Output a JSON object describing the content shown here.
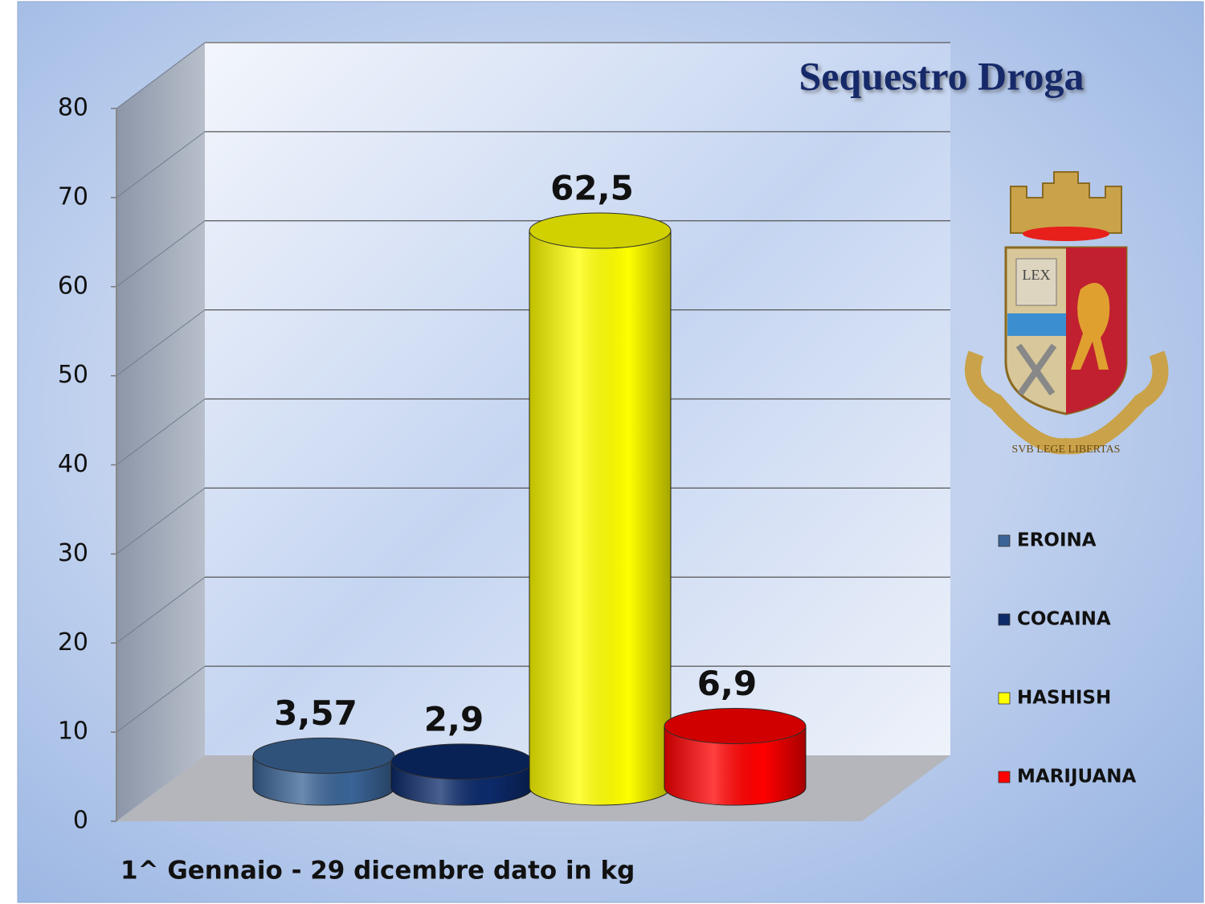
{
  "chart_data": {
    "type": "bar",
    "title": "Sequestro Droga",
    "footnote": "1^ Gennaio  - 29 dicembre dato in kg",
    "series": [
      {
        "name": "EROINA",
        "color": "#3a6496",
        "values": [
          3.57
        ],
        "value_labels": [
          "3,57"
        ]
      },
      {
        "name": "COCAINA",
        "color": "#0c2a6a",
        "values": [
          2.9
        ],
        "value_labels": [
          "2,9"
        ]
      },
      {
        "name": "HASHISH",
        "color": "#ffff00",
        "values": [
          62.5
        ],
        "value_labels": [
          "62,5"
        ]
      },
      {
        "name": "MARIJUANA",
        "color": "#ff0000",
        "values": [
          6.9
        ],
        "value_labels": [
          "6,9"
        ]
      }
    ],
    "ylim": [
      0,
      80
    ],
    "yticks": [
      0,
      10,
      20,
      30,
      40,
      50,
      60,
      70,
      80
    ],
    "grid": true
  },
  "emblem": {
    "book_text": "LEX",
    "motto": "SVB LEGE LIBERTAS"
  }
}
